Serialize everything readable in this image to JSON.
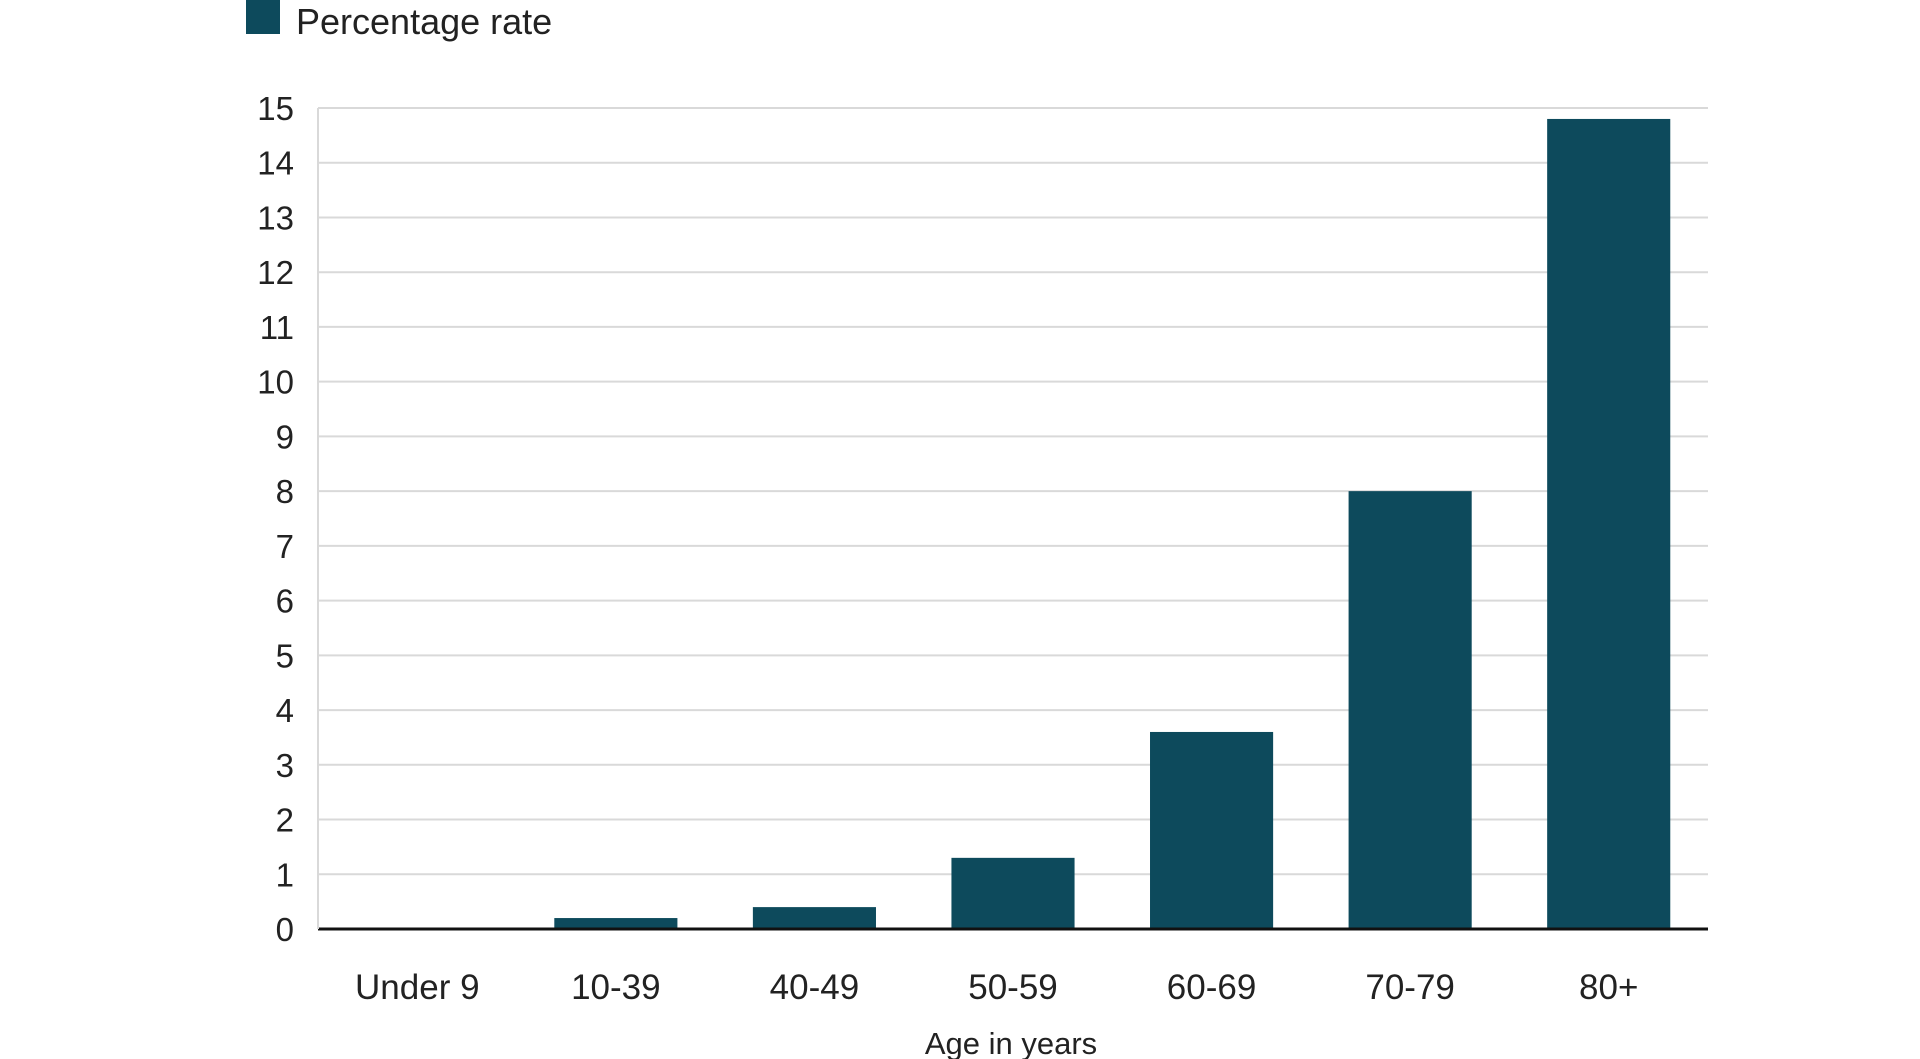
{
  "chart_data": {
    "type": "bar",
    "categories": [
      "Under 9",
      "10-39",
      "40-49",
      "50-59",
      "60-69",
      "70-79",
      "80+"
    ],
    "series": [
      {
        "name": "Percentage rate",
        "values": [
          0,
          0.2,
          0.4,
          1.3,
          3.6,
          8.0,
          14.8
        ]
      }
    ],
    "xlabel": "Age in years",
    "ylabel": "",
    "ylim": [
      0,
      15
    ],
    "yticks": [
      0,
      1,
      2,
      3,
      4,
      5,
      6,
      7,
      8,
      9,
      10,
      11,
      12,
      13,
      14,
      15
    ],
    "grid": true,
    "legend_position": "top-left",
    "bar_color": "#0d4a5c",
    "grid_color": "#d9d9d9",
    "axis_color": "#111111"
  }
}
